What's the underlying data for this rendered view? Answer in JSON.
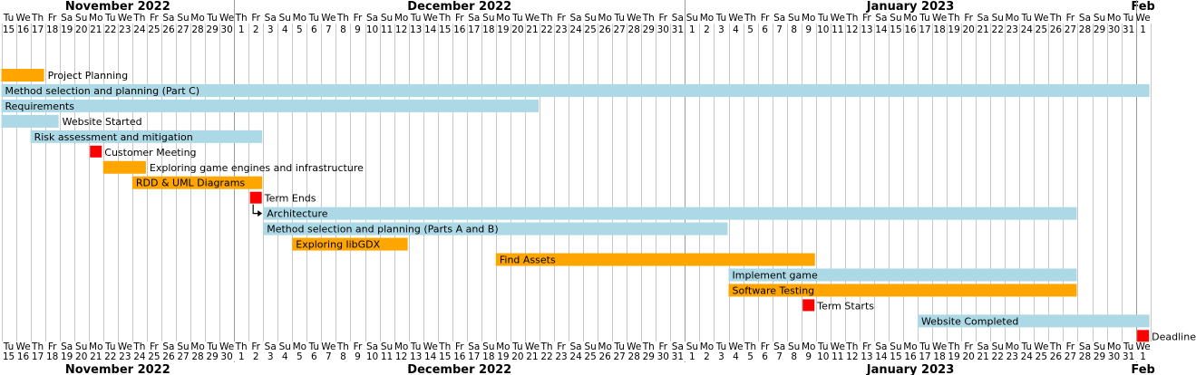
{
  "chart_data": {
    "type": "gantt",
    "months": [
      {
        "label": "November 2022",
        "start": "2022-11-15",
        "end": "2022-11-30"
      },
      {
        "label": "December 2022",
        "start": "2022-12-01",
        "end": "2022-12-31"
      },
      {
        "label": "January 2023",
        "start": "2023-01-01",
        "end": "2023-01-31"
      },
      {
        "label": "Feb",
        "start": "2023-02-01",
        "end": "2023-02-01"
      }
    ],
    "x_range": [
      "2022-11-15",
      "2023-02-01"
    ],
    "weekday_labels": [
      "Su",
      "Mo",
      "Tu",
      "We",
      "Th",
      "Fr",
      "Sa"
    ],
    "tasks": [
      {
        "name": "Project Planning",
        "start": "2022-11-15",
        "end": "2022-11-17",
        "kind": "task",
        "color": "#FFA500"
      },
      {
        "name": "Method selection and planning (Part C)",
        "start": "2022-11-15",
        "end": "2023-02-01",
        "kind": "task",
        "color": "#ADD8E6"
      },
      {
        "name": "Requirements",
        "start": "2022-11-15",
        "end": "2022-12-21",
        "kind": "task",
        "color": "#ADD8E6"
      },
      {
        "name": "Website Started",
        "start": "2022-11-15",
        "end": "2022-11-18",
        "kind": "task",
        "color": "#ADD8E6"
      },
      {
        "name": "Risk assessment and mitigation",
        "start": "2022-11-17",
        "end": "2022-12-02",
        "kind": "task",
        "color": "#ADD8E6"
      },
      {
        "name": "Customer Meeting",
        "start": "2022-11-21",
        "end": "2022-11-21",
        "kind": "milestone",
        "color": "#FF0000"
      },
      {
        "name": "Exploring game engines and infrastructure",
        "start": "2022-11-22",
        "end": "2022-11-24",
        "kind": "task",
        "color": "#FFA500"
      },
      {
        "name": "RDD & UML Diagrams",
        "start": "2022-11-24",
        "end": "2022-12-02",
        "kind": "task",
        "color": "#FFA500"
      },
      {
        "name": "Term Ends",
        "start": "2022-12-02",
        "end": "2022-12-02",
        "kind": "milestone",
        "color": "#FF0000"
      },
      {
        "name": "Architecture",
        "start": "2022-12-03",
        "end": "2023-01-27",
        "kind": "task",
        "color": "#ADD8E6"
      },
      {
        "name": "Method selection and planning (Parts A and B)",
        "start": "2022-12-03",
        "end": "2023-01-03",
        "kind": "task",
        "color": "#ADD8E6"
      },
      {
        "name": "Exploring libGDX",
        "start": "2022-12-05",
        "end": "2022-12-12",
        "kind": "task",
        "color": "#FFA500"
      },
      {
        "name": "Find Assets",
        "start": "2022-12-19",
        "end": "2023-01-09",
        "kind": "task",
        "color": "#FFA500"
      },
      {
        "name": "Implement game",
        "start": "2023-01-04",
        "end": "2023-01-27",
        "kind": "task",
        "color": "#ADD8E6"
      },
      {
        "name": "Software Testing",
        "start": "2023-01-04",
        "end": "2023-01-27",
        "kind": "task",
        "color": "#FFA500"
      },
      {
        "name": "Term Starts",
        "start": "2023-01-09",
        "end": "2023-01-09",
        "kind": "milestone",
        "color": "#FF0000"
      },
      {
        "name": "Website Completed",
        "start": "2023-01-17",
        "end": "2023-02-01",
        "kind": "task",
        "color": "#ADD8E6"
      },
      {
        "name": "Deadline",
        "start": "2023-02-01",
        "end": "2023-02-01",
        "kind": "milestone",
        "color": "#FF0000"
      }
    ],
    "dependencies": [
      {
        "from": "Term Ends",
        "to": "Architecture"
      }
    ],
    "label_inside": [
      "Method selection and planning (Part C)",
      "Requirements",
      "Risk assessment and mitigation",
      "RDD & UML Diagrams",
      "Architecture",
      "Method selection and planning (Parts A and B)",
      "Exploring libGDX",
      "Find Assets",
      "Implement game",
      "Software Testing",
      "Website Completed"
    ],
    "grid": true
  }
}
